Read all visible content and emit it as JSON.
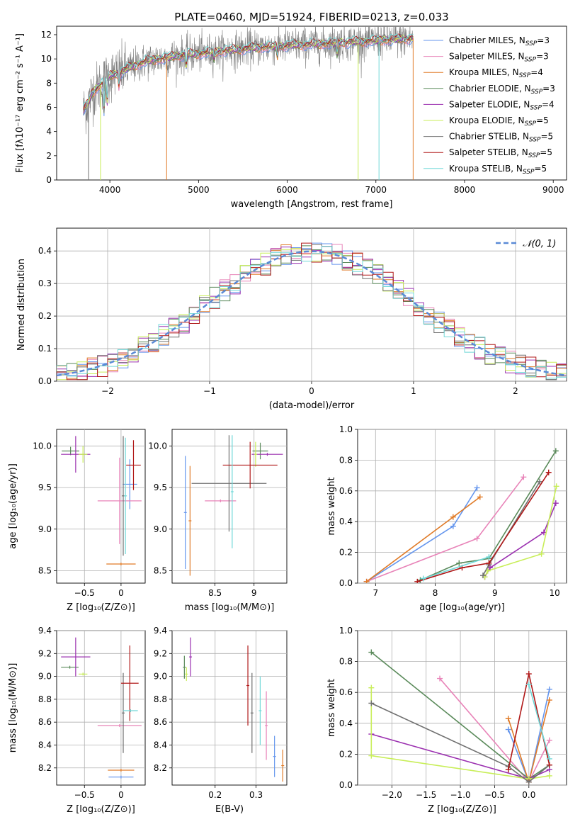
{
  "colors": {
    "chabrier_miles": "#6495ED",
    "salpeter_miles": "#E883B8",
    "kroupa_miles": "#E07B28",
    "chabrier_elodie": "#5A8A5A",
    "salpeter_elodie": "#9B30B0",
    "kroupa_elodie": "#C8EE58",
    "chabrier_stelib": "#707070",
    "salpeter_stelib": "#B01818",
    "kroupa_stelib": "#70D8D8",
    "gauss": "#5A8AD6"
  },
  "chart_data": [
    {
      "type": "line",
      "title": "PLATE=0460, MJD=51924, FIBERID=0213, z=0.033",
      "xlabel": "wavelength [Angstrom, rest frame]",
      "ylabel": "Flux [fλ10⁻¹⁷ erg cm⁻² s⁻¹ A⁻¹]",
      "xlim": [
        3400,
        9150
      ],
      "ylim": [
        0,
        12.7
      ],
      "xticks": [
        4000,
        5000,
        6000,
        7000,
        8000,
        9000
      ],
      "yticks": [
        0,
        2,
        4,
        6,
        8,
        10,
        12
      ],
      "data_range": [
        3700,
        7420
      ],
      "continuum": [
        [
          3700,
          5.7
        ],
        [
          3760,
          6.4
        ],
        [
          3800,
          7.2
        ],
        [
          3900,
          7.9
        ],
        [
          4000,
          8.6
        ],
        [
          4100,
          8.8
        ],
        [
          4200,
          9.2
        ],
        [
          4400,
          9.8
        ],
        [
          4800,
          10.3
        ],
        [
          5200,
          10.6
        ],
        [
          5600,
          10.9
        ],
        [
          6000,
          11.1
        ],
        [
          6500,
          11.3
        ],
        [
          7000,
          11.5
        ],
        [
          7420,
          11.7
        ]
      ],
      "legend": [
        {
          "label": "Chabrier MILES, N",
          "sub": "SSP",
          "tail": "=3",
          "color_key": "chabrier_miles"
        },
        {
          "label": "Salpeter MILES, N",
          "sub": "SSP",
          "tail": "=3",
          "color_key": "salpeter_miles"
        },
        {
          "label": "Kroupa MILES, N",
          "sub": "SSP",
          "tail": "=4",
          "color_key": "kroupa_miles"
        },
        {
          "label": "Chabrier ELODIE, N",
          "sub": "SSP",
          "tail": "=3",
          "color_key": "chabrier_elodie"
        },
        {
          "label": "Salpeter ELODIE, N",
          "sub": "SSP",
          "tail": "=4",
          "color_key": "salpeter_elodie"
        },
        {
          "label": "Kroupa ELODIE, N",
          "sub": "SSP",
          "tail": "=5",
          "color_key": "kroupa_elodie"
        },
        {
          "label": "Chabrier STELIB, N",
          "sub": "SSP",
          "tail": "=5",
          "color_key": "chabrier_stelib"
        },
        {
          "label": "Salpeter STELIB, N",
          "sub": "SSP",
          "tail": "=5",
          "color_key": "salpeter_stelib"
        },
        {
          "label": "Kroupa STELIB, N",
          "sub": "SSP",
          "tail": "=5",
          "color_key": "kroupa_stelib"
        }
      ]
    },
    {
      "type": "histogram",
      "xlabel": "(data-model)/error",
      "ylabel": "Normed distribution",
      "xlim": [
        -2.5,
        2.5
      ],
      "ylim": [
        0,
        0.47
      ],
      "xticks": [
        -2,
        -1,
        0,
        1,
        2
      ],
      "yticks": [
        0.0,
        0.1,
        0.2,
        0.3,
        0.4
      ],
      "bin_width": 0.1,
      "legend_label": "𝒩(0, 1)",
      "series_keys": [
        "chabrier_miles",
        "salpeter_miles",
        "kroupa_miles",
        "chabrier_elodie",
        "salpeter_elodie",
        "kroupa_elodie",
        "chabrier_stelib",
        "salpeter_stelib",
        "kroupa_stelib"
      ]
    },
    {
      "type": "errorbar",
      "xlabel": "Z [log₁₀(Z/Z⊙)]",
      "ylabel": "age  [log₁₀(age/yr)]",
      "xlim": [
        -0.88,
        0.33
      ],
      "ylim": [
        8.35,
        10.2
      ],
      "xticks": [
        -0.5,
        0.0
      ],
      "yticks": [
        8.5,
        9.0,
        9.5,
        10.0
      ],
      "points": [
        {
          "key": "chabrier_miles",
          "x": 0.12,
          "xerr": 0.1,
          "y": 9.54,
          "yerr": 0.3
        },
        {
          "key": "salpeter_miles",
          "x": -0.02,
          "xerr": 0.3,
          "y": 9.34,
          "yerr": 0.52
        },
        {
          "key": "kroupa_miles",
          "x": 0.0,
          "xerr": 0.2,
          "y": 8.58,
          "yerr": 0.0
        },
        {
          "key": "chabrier_elodie",
          "x": -0.69,
          "xerr": 0.12,
          "y": 9.94,
          "yerr": 0.05
        },
        {
          "key": "salpeter_elodie",
          "x": -0.62,
          "xerr": 0.2,
          "y": 9.9,
          "yerr": 0.22
        },
        {
          "key": "kroupa_elodie",
          "x": -0.52,
          "xerr": 0.06,
          "y": 9.9,
          "yerr": 0.1
        },
        {
          "key": "chabrier_stelib",
          "x": 0.03,
          "xerr": 0.0,
          "y": 9.4,
          "yerr": 0.72
        },
        {
          "key": "salpeter_stelib",
          "x": 0.17,
          "xerr": 0.1,
          "y": 9.77,
          "yerr": 0.3
        },
        {
          "key": "kroupa_stelib",
          "x": 0.06,
          "xerr": 0.02,
          "y": 9.4,
          "yerr": 0.7
        }
      ]
    },
    {
      "type": "errorbar",
      "xlabel": "mass [log₁₀(M/M⊙)]",
      "ylabel": "",
      "xlim": [
        7.95,
        9.42
      ],
      "ylim": [
        8.35,
        10.2
      ],
      "xticks": [
        8.5,
        9.0
      ],
      "yticks": [
        8.5,
        9.0,
        9.5,
        10.0
      ],
      "points": [
        {
          "key": "chabrier_miles",
          "x": 8.12,
          "xerr": 0.0,
          "y": 9.2,
          "yerr": 0.68
        },
        {
          "key": "salpeter_miles",
          "x": 8.57,
          "xerr": 0.2,
          "y": 9.34,
          "yerr": 0.0
        },
        {
          "key": "kroupa_miles",
          "x": 8.18,
          "xerr": 0.0,
          "y": 9.1,
          "yerr": 0.66
        },
        {
          "key": "chabrier_elodie",
          "x": 9.08,
          "xerr": 0.1,
          "y": 9.94,
          "yerr": 0.1
        },
        {
          "key": "salpeter_elodie",
          "x": 9.17,
          "xerr": 0.2,
          "y": 9.9,
          "yerr": 0.0
        },
        {
          "key": "kroupa_elodie",
          "x": 9.02,
          "xerr": 0.0,
          "y": 9.9,
          "yerr": 0.15
        },
        {
          "key": "chabrier_stelib",
          "x": 8.68,
          "xerr": 0.48,
          "y": 9.55,
          "yerr": 0.58
        },
        {
          "key": "salpeter_stelib",
          "x": 8.95,
          "xerr": 0.35,
          "y": 9.77,
          "yerr": 0.28
        },
        {
          "key": "kroupa_stelib",
          "x": 8.72,
          "xerr": 0.0,
          "y": 9.45,
          "yerr": 0.68
        }
      ]
    },
    {
      "type": "line",
      "xlabel": "age  [log₁₀(age/yr)]",
      "ylabel": "mass weight",
      "xlim": [
        6.7,
        10.2
      ],
      "ylim": [
        0.0,
        1.0
      ],
      "xticks": [
        7,
        8,
        9,
        10
      ],
      "yticks": [
        0.0,
        0.2,
        0.4,
        0.6,
        0.8,
        1.0
      ],
      "series": [
        {
          "key": "chabrier_miles",
          "x": [
            6.85,
            8.3,
            8.7
          ],
          "y": [
            0.01,
            0.37,
            0.62
          ]
        },
        {
          "key": "salpeter_miles",
          "x": [
            6.85,
            8.7,
            9.48
          ],
          "y": [
            0.01,
            0.29,
            0.69
          ]
        },
        {
          "key": "kroupa_miles",
          "x": [
            6.85,
            8.3,
            8.75
          ],
          "y": [
            0.01,
            0.43,
            0.56
          ]
        },
        {
          "key": "chabrier_elodie",
          "x": [
            7.75,
            8.4,
            8.9,
            10.02
          ],
          "y": [
            0.02,
            0.13,
            0.16,
            0.86
          ]
        },
        {
          "key": "salpeter_elodie",
          "x": [
            8.83,
            8.92,
            9.82,
            10.02
          ],
          "y": [
            0.04,
            0.1,
            0.33,
            0.52
          ]
        },
        {
          "key": "kroupa_elodie",
          "x": [
            8.83,
            8.88,
            9.78,
            10.03
          ],
          "y": [
            0.04,
            0.08,
            0.19,
            0.63
          ]
        },
        {
          "key": "chabrier_stelib",
          "x": [
            8.8,
            8.9,
            9.75
          ],
          "y": [
            0.05,
            0.12,
            0.66
          ]
        },
        {
          "key": "salpeter_stelib",
          "x": [
            7.7,
            8.45,
            8.9,
            9.9
          ],
          "y": [
            0.01,
            0.1,
            0.13,
            0.72
          ]
        },
        {
          "key": "kroupa_stelib",
          "x": [
            7.8,
            8.9
          ],
          "y": [
            0.03,
            0.17
          ]
        }
      ]
    },
    {
      "type": "errorbar",
      "xlabel": "Z [log₁₀(Z/Z⊙)]",
      "ylabel": "mass [log₁₀(M/M⊙)]",
      "xlim": [
        -0.88,
        0.33
      ],
      "ylim": [
        8.05,
        9.4
      ],
      "xticks": [
        -0.5,
        0.0
      ],
      "yticks": [
        8.2,
        8.4,
        8.6,
        8.8,
        9.0,
        9.2,
        9.4
      ],
      "points": [
        {
          "key": "chabrier_miles",
          "x": 0.0,
          "xerr": 0.17,
          "y": 8.12,
          "yerr": 0.0
        },
        {
          "key": "salpeter_miles",
          "x": -0.02,
          "xerr": 0.3,
          "y": 8.57,
          "yerr": 0.0
        },
        {
          "key": "kroupa_miles",
          "x": 0.0,
          "xerr": 0.18,
          "y": 8.18,
          "yerr": 0.0
        },
        {
          "key": "chabrier_elodie",
          "x": -0.7,
          "xerr": 0.12,
          "y": 9.08,
          "yerr": 0.0
        },
        {
          "key": "salpeter_elodie",
          "x": -0.62,
          "xerr": 0.2,
          "y": 9.17,
          "yerr": 0.17
        },
        {
          "key": "kroupa_elodie",
          "x": -0.52,
          "xerr": 0.06,
          "y": 9.02,
          "yerr": 0.0
        },
        {
          "key": "chabrier_stelib",
          "x": 0.03,
          "xerr": 0.0,
          "y": 8.68,
          "yerr": 0.35
        },
        {
          "key": "salpeter_stelib",
          "x": 0.12,
          "xerr": 0.12,
          "y": 8.94,
          "yerr": 0.33
        },
        {
          "key": "kroupa_stelib",
          "x": 0.13,
          "xerr": 0.1,
          "y": 8.7,
          "yerr": 0.0
        }
      ]
    },
    {
      "type": "errorbar",
      "xlabel": "E(B-V)",
      "ylabel": "",
      "xlim": [
        0.095,
        0.375
      ],
      "ylim": [
        8.05,
        9.4
      ],
      "xticks": [
        0.2,
        0.3
      ],
      "yticks": [
        8.2,
        8.4,
        8.6,
        8.8,
        9.0,
        9.2,
        9.4
      ],
      "points": [
        {
          "key": "chabrier_miles",
          "x": 0.345,
          "xerr": 0.0,
          "y": 8.3,
          "yerr": 0.18
        },
        {
          "key": "salpeter_miles",
          "x": 0.325,
          "xerr": 0.0,
          "y": 8.57,
          "yerr": 0.3
        },
        {
          "key": "kroupa_miles",
          "x": 0.365,
          "xerr": 0.0,
          "y": 8.22,
          "yerr": 0.14
        },
        {
          "key": "chabrier_elodie",
          "x": 0.125,
          "xerr": 0.0,
          "y": 9.08,
          "yerr": 0.1
        },
        {
          "key": "salpeter_elodie",
          "x": 0.14,
          "xerr": 0.0,
          "y": 9.17,
          "yerr": 0.17
        },
        {
          "key": "kroupa_elodie",
          "x": 0.13,
          "xerr": 0.0,
          "y": 9.02,
          "yerr": 0.06
        },
        {
          "key": "chabrier_stelib",
          "x": 0.29,
          "xerr": 0.0,
          "y": 8.68,
          "yerr": 0.35
        },
        {
          "key": "salpeter_stelib",
          "x": 0.28,
          "xerr": 0.0,
          "y": 8.92,
          "yerr": 0.35
        },
        {
          "key": "kroupa_stelib",
          "x": 0.31,
          "xerr": 0.0,
          "y": 8.7,
          "yerr": 0.3
        }
      ]
    },
    {
      "type": "line",
      "xlabel": "Z [log₁₀(Z/Z⊙)]",
      "ylabel": "mass weight",
      "xlim": [
        -2.5,
        0.55
      ],
      "ylim": [
        0.0,
        1.0
      ],
      "xticks": [
        -2.0,
        -1.5,
        -1.0,
        -0.5,
        0.0
      ],
      "yticks": [
        0.0,
        0.2,
        0.4,
        0.6,
        0.8,
        1.0
      ],
      "series": [
        {
          "key": "chabrier_miles",
          "x": [
            -0.3,
            0.0,
            0.3
          ],
          "y": [
            0.36,
            0.02,
            0.62
          ]
        },
        {
          "key": "salpeter_miles",
          "x": [
            -1.3,
            0.0,
            0.3
          ],
          "y": [
            0.69,
            0.02,
            0.29
          ]
        },
        {
          "key": "kroupa_miles",
          "x": [
            -0.3,
            0.0,
            0.3
          ],
          "y": [
            0.43,
            0.02,
            0.55
          ]
        },
        {
          "key": "chabrier_elodie",
          "x": [
            -2.3,
            0.0,
            0.3
          ],
          "y": [
            0.86,
            0.04,
            0.13
          ]
        },
        {
          "key": "salpeter_elodie",
          "x": [
            -2.3,
            0.0,
            0.3
          ],
          "y": [
            0.33,
            0.04,
            0.1
          ]
        },
        {
          "key": "kroupa_elodie",
          "x": [
            -2.3,
            -2.3,
            0.0,
            0.3
          ],
          "y": [
            0.63,
            0.19,
            0.04,
            0.06
          ]
        },
        {
          "key": "chabrier_stelib",
          "x": [
            -2.3,
            -0.3,
            0.0,
            0.3
          ],
          "y": [
            0.53,
            0.12,
            0.02,
            0.13
          ]
        },
        {
          "key": "salpeter_stelib",
          "x": [
            -0.3,
            0.0,
            0.3
          ],
          "y": [
            0.1,
            0.72,
            0.13
          ]
        },
        {
          "key": "kroupa_stelib",
          "x": [
            0.0,
            0.3
          ],
          "y": [
            0.65,
            0.17
          ]
        }
      ]
    }
  ]
}
